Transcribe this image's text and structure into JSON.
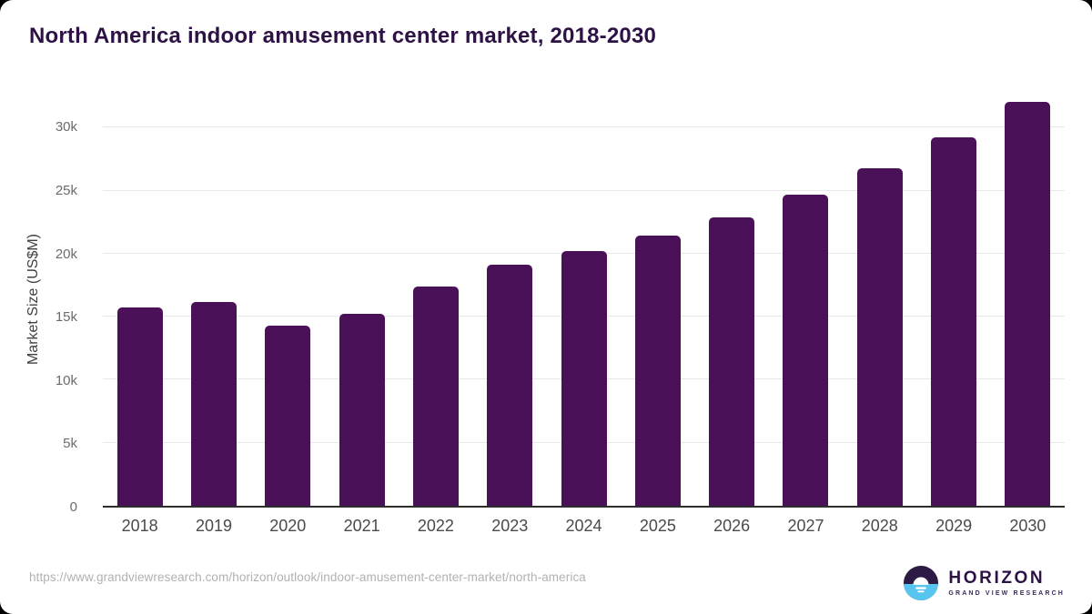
{
  "page": {
    "title": "North America indoor amusement center market, 2018-2030",
    "source_url": "https://www.grandviewresearch.com/horizon/outlook/indoor-amusement-center-market/north-america",
    "logo": {
      "brand": "HORIZON",
      "sub_brand": "GRAND VIEW RESEARCH",
      "icon": "sunset-horizon-icon"
    }
  },
  "colors": {
    "bar": "#4a1058",
    "title": "#2e1245",
    "gridline": "#e8e8e8",
    "axis_line": "#2d2d2d",
    "tick_label": "#6b6b6b",
    "logo_purple": "#2d1a45",
    "logo_blue": "#58c5f0",
    "url_gray": "#b1b1b1"
  },
  "chart_data": {
    "type": "bar",
    "title": "North America indoor amusement center market, 2018-2030",
    "categories": [
      "2018",
      "2019",
      "2020",
      "2021",
      "2022",
      "2023",
      "2024",
      "2025",
      "2026",
      "2027",
      "2028",
      "2029",
      "2030"
    ],
    "values": [
      15700,
      16150,
      14300,
      15250,
      17400,
      19100,
      20200,
      21450,
      22900,
      24700,
      26750,
      29200,
      32000
    ],
    "xlabel": "",
    "ylabel": "Market Size (US$M)",
    "ylim": [
      0,
      32900
    ],
    "y_ticks": [
      {
        "value": 0,
        "label": "0"
      },
      {
        "value": 5000,
        "label": "5k"
      },
      {
        "value": 10000,
        "label": "10k"
      },
      {
        "value": 15000,
        "label": "15k"
      },
      {
        "value": 20000,
        "label": "20k"
      },
      {
        "value": 25000,
        "label": "25k"
      },
      {
        "value": 30000,
        "label": "30k"
      }
    ],
    "grid": true,
    "legend": false,
    "bar_color": "#4a1058"
  }
}
